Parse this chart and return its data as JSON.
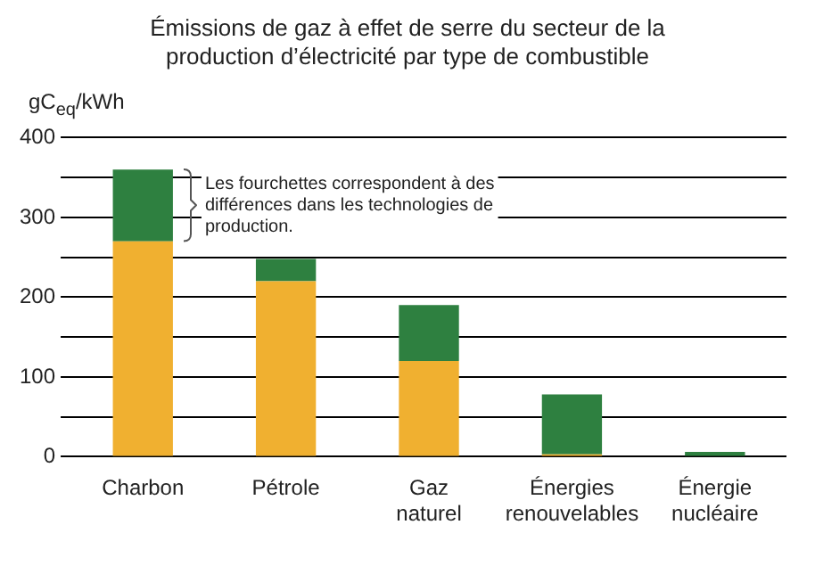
{
  "chart_data": {
    "type": "bar",
    "title": "Émissions de gaz à effet de serre du secteur de la production d’électricité par type de combustible",
    "ylabel": "gC$_{eq}$/kWh",
    "categories": [
      "Charbon",
      "Pétrole",
      "Gaz naturel",
      "Énergies renouvelables",
      "Énergie nucléaire"
    ],
    "stacked": true,
    "series": [
      {
        "color": "#f0b030",
        "values": [
          270,
          220,
          120,
          3,
          null
        ]
      },
      {
        "color": "#2e8040",
        "values": [
          90,
          28,
          70,
          75,
          6
        ]
      }
    ],
    "ylim": [
      0,
      400
    ],
    "yticks": [
      0,
      {
        "value": 50,
        "label": null
      },
      100,
      {
        "value": 150,
        "label": null
      },
      200,
      {
        "value": 250,
        "label": null
      },
      300,
      {
        "value": 350,
        "label": null
      },
      400
    ],
    "grid": "y",
    "legend": false,
    "annotations": [
      "Les fourchettes correspondent à des différences dans les technologies de production."
    ]
  }
}
